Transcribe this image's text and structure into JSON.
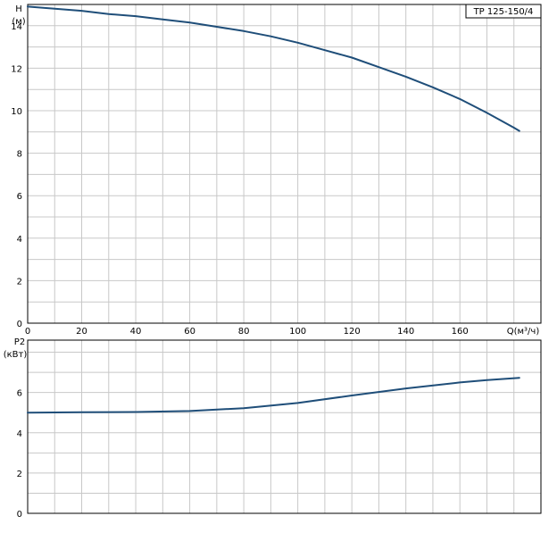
{
  "chart_data": [
    {
      "type": "line",
      "model_label": "TP 125-150/4",
      "ylabel": "H",
      "yunit": "(м)",
      "xlabel": "Q(м³/ч)",
      "xlim": [
        0,
        190
      ],
      "ylim": [
        0,
        15
      ],
      "xticks": [
        0,
        20,
        40,
        60,
        80,
        100,
        120,
        140,
        160
      ],
      "yticks": [
        0,
        2,
        4,
        6,
        8,
        10,
        12,
        14
      ],
      "grid": true,
      "color": "#1f4e79",
      "series": [
        {
          "x": [
            0,
            10,
            20,
            30,
            40,
            50,
            60,
            70,
            80,
            90,
            100,
            110,
            120,
            130,
            140,
            150,
            160,
            170,
            180,
            182
          ],
          "values": [
            14.9,
            14.8,
            14.7,
            14.55,
            14.45,
            14.3,
            14.15,
            13.95,
            13.75,
            13.5,
            13.2,
            12.85,
            12.5,
            12.05,
            11.6,
            11.1,
            10.55,
            9.9,
            9.2,
            9.05
          ]
        }
      ]
    },
    {
      "type": "line",
      "ylabel": "P2",
      "yunit": "(кВт)",
      "xlim": [
        0,
        190
      ],
      "ylim": [
        0,
        8.6
      ],
      "xticks": [
        0,
        20,
        40,
        60,
        80,
        100,
        120,
        140,
        160
      ],
      "yticks": [
        0,
        2,
        4,
        6
      ],
      "grid": true,
      "color": "#1f4e79",
      "series": [
        {
          "x": [
            0,
            20,
            40,
            60,
            80,
            100,
            120,
            140,
            160,
            170,
            182
          ],
          "values": [
            5.0,
            5.02,
            5.03,
            5.08,
            5.22,
            5.48,
            5.85,
            6.2,
            6.5,
            6.62,
            6.73
          ]
        }
      ]
    }
  ]
}
